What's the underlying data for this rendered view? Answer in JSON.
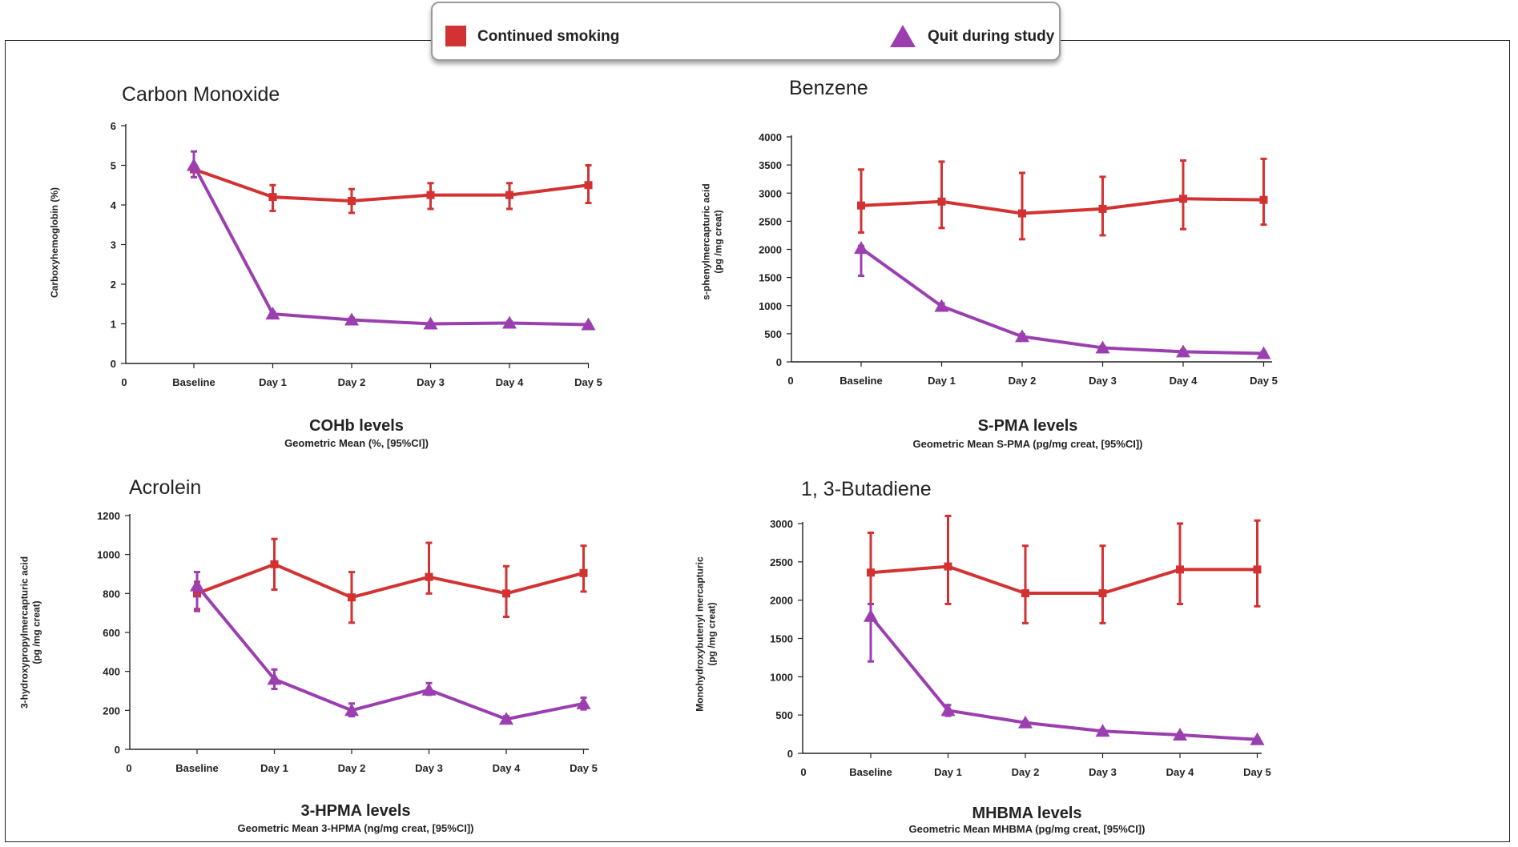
{
  "legend": {
    "continued_label": "Continued smoking",
    "quit_label": "Quit during study",
    "continued_color": "#d23232",
    "quit_color": "#9b3fb0"
  },
  "chart_data": [
    {
      "type": "line",
      "title": "Carbon Monoxide",
      "xlabel": "COHb levels",
      "xsub": "Geometric Mean (%, [95%CI])",
      "ylabel": [
        "Carboxyhemoglobin (%)"
      ],
      "categories": [
        "Baseline",
        "Day 1",
        "Day 2",
        "Day 3",
        "Day 4",
        "Day 5"
      ],
      "x_origin_label": "0",
      "ylim": [
        0,
        6
      ],
      "yticks": [
        0,
        1,
        2,
        3,
        4,
        5,
        6
      ],
      "series": [
        {
          "name": "Continued smoking",
          "marker": "square",
          "color": "#d23232",
          "values": [
            4.9,
            4.2,
            4.1,
            4.25,
            4.25,
            4.5
          ],
          "ci_low": [
            4.85,
            3.85,
            3.8,
            3.9,
            3.9,
            4.05
          ],
          "ci_high": [
            4.95,
            4.5,
            4.4,
            4.55,
            4.55,
            5.0
          ]
        },
        {
          "name": "Quit during study",
          "marker": "triangle",
          "color": "#9b3fb0",
          "values": [
            5.0,
            1.25,
            1.1,
            1.0,
            1.02,
            0.98
          ],
          "ci_low": [
            4.7,
            1.2,
            1.05,
            0.97,
            0.98,
            0.95
          ],
          "ci_high": [
            5.35,
            1.3,
            1.15,
            1.03,
            1.06,
            1.01
          ]
        }
      ]
    },
    {
      "type": "line",
      "title": "Benzene",
      "xlabel": "S-PMA levels",
      "xsub": "Geometric Mean  S-PMA (pg/mg creat, [95%CI])",
      "ylabel": [
        "s-phenylmercapturic acid",
        "(pg /mg creat)"
      ],
      "categories": [
        "Baseline",
        "Day 1",
        "Day 2",
        "Day 3",
        "Day 4",
        "Day 5"
      ],
      "x_origin_label": "0",
      "ylim": [
        0,
        4000
      ],
      "yticks": [
        0,
        500,
        1000,
        1500,
        2000,
        2500,
        3000,
        3500,
        4000
      ],
      "series": [
        {
          "name": "Continued smoking",
          "marker": "square",
          "color": "#d23232",
          "values": [
            2780,
            2850,
            2640,
            2720,
            2900,
            2880
          ],
          "ci_low": [
            2300,
            2380,
            2180,
            2250,
            2360,
            2440
          ],
          "ci_high": [
            3420,
            3560,
            3360,
            3290,
            3580,
            3610
          ]
        },
        {
          "name": "Quit during study",
          "marker": "triangle",
          "color": "#9b3fb0",
          "values": [
            2020,
            990,
            450,
            250,
            180,
            150
          ],
          "ci_low": [
            1530,
            940,
            410,
            220,
            150,
            120
          ],
          "ci_high": [
            2060,
            1040,
            490,
            280,
            210,
            180
          ]
        }
      ]
    },
    {
      "type": "line",
      "title": "Acrolein",
      "xlabel": "3-HPMA levels",
      "xsub": "Geometric Mean 3-HPMA (ng/mg creat, [95%CI])",
      "ylabel": [
        "3-hydroxypropylmercapturic acid",
        "(pg /mg creat)"
      ],
      "categories": [
        "Baseline",
        "Day 1",
        "Day 2",
        "Day 3",
        "Day 4",
        "Day 5"
      ],
      "x_origin_label": "0",
      "ylim": [
        0,
        1200
      ],
      "yticks": [
        0,
        200,
        400,
        600,
        800,
        1000,
        1200
      ],
      "series": [
        {
          "name": "Continued smoking",
          "marker": "square",
          "color": "#d23232",
          "values": [
            800,
            950,
            780,
            885,
            800,
            905
          ],
          "ci_low": [
            720,
            820,
            650,
            800,
            680,
            810
          ],
          "ci_high": [
            860,
            1080,
            910,
            1060,
            940,
            1045
          ]
        },
        {
          "name": "Quit during study",
          "marker": "triangle",
          "color": "#9b3fb0",
          "values": [
            840,
            360,
            200,
            305,
            155,
            235
          ],
          "ci_low": [
            710,
            310,
            170,
            280,
            145,
            205
          ],
          "ci_high": [
            910,
            410,
            235,
            340,
            170,
            265
          ]
        }
      ]
    },
    {
      "type": "line",
      "title": "1, 3-Butadiene",
      "xlabel": "MHBMA levels",
      "xsub": "Geometric Mean MHBMA (pg/mg creat, [95%CI])",
      "ylabel": [
        "Monohydroxybutenyl mercapturic",
        "(pg /mg creat)"
      ],
      "categories": [
        "Baseline",
        "Day 1",
        "Day 2",
        "Day 3",
        "Day 4",
        "Day 5"
      ],
      "x_origin_label": "0",
      "ylim": [
        0,
        3000
      ],
      "yticks": [
        0,
        500,
        1000,
        1500,
        2000,
        2500,
        3000
      ],
      "series": [
        {
          "name": "Continued smoking",
          "marker": "square",
          "color": "#d23232",
          "values": [
            2360,
            2440,
            2090,
            2090,
            2400,
            2400
          ],
          "ci_low": [
            1950,
            1950,
            1700,
            1700,
            1950,
            1920
          ],
          "ci_high": [
            2880,
            3100,
            2710,
            2710,
            3000,
            3040
          ]
        },
        {
          "name": "Quit during study",
          "marker": "triangle",
          "color": "#9b3fb0",
          "values": [
            1790,
            560,
            400,
            290,
            240,
            180
          ],
          "ci_low": [
            1200,
            490,
            380,
            270,
            220,
            160
          ],
          "ci_high": [
            1950,
            630,
            420,
            310,
            260,
            200
          ]
        }
      ]
    }
  ]
}
